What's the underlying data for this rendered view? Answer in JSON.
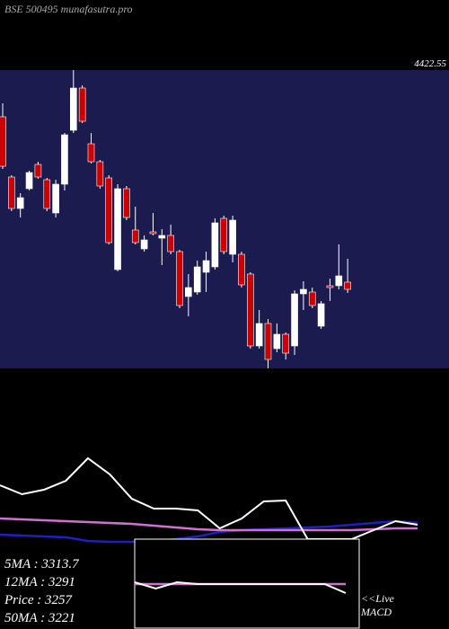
{
  "chart_data": [
    {
      "type": "candlestick",
      "title": "BSE 500495 munafasutra.pro",
      "annotations": [
        "4422.55"
      ],
      "up_color": "#ffffff",
      "down_color": "#cc0000",
      "background": "#1b1b50",
      "ylim": [
        2740,
        4400
      ],
      "open": [
        4140,
        3805,
        3630,
        3740,
        3875,
        3790,
        3605,
        3765,
        4065,
        4300,
        3990,
        3890,
        3800,
        3290,
        3740,
        3510,
        3405,
        3500,
        3465,
        3480,
        3390,
        3140,
        3165,
        3275,
        3305,
        3575,
        3375,
        3375,
        3265,
        2865,
        2990,
        2850,
        2930,
        2865,
        3155,
        3165,
        2975,
        3200,
        3200,
        3220
      ],
      "high": [
        4215,
        3815,
        3715,
        3840,
        3890,
        3800,
        3790,
        4050,
        4400,
        4315,
        4050,
        3900,
        3815,
        3765,
        3755,
        3640,
        3480,
        3605,
        3515,
        3540,
        3400,
        3265,
        3340,
        3390,
        3575,
        3590,
        3590,
        3390,
        3275,
        3065,
        3015,
        2990,
        2940,
        3175,
        3225,
        3190,
        3115,
        3240,
        3430,
        3350
      ],
      "low": [
        3850,
        3615,
        3580,
        3730,
        3795,
        3615,
        3580,
        3730,
        4050,
        4105,
        3880,
        3740,
        3430,
        3280,
        3565,
        3430,
        3390,
        3480,
        3315,
        3375,
        3075,
        3030,
        3150,
        3165,
        3290,
        3375,
        3330,
        3190,
        2850,
        2850,
        2740,
        2830,
        2790,
        2815,
        3065,
        3075,
        2960,
        3115,
        3180,
        3160
      ],
      "close": [
        3865,
        3630,
        3690,
        3830,
        3805,
        3630,
        3765,
        4040,
        4300,
        4115,
        3890,
        3755,
        3440,
        3740,
        3580,
        3440,
        3455,
        3490,
        3480,
        3390,
        3090,
        3190,
        3305,
        3340,
        3550,
        3390,
        3565,
        3205,
        2865,
        2990,
        2790,
        2930,
        2825,
        3155,
        3180,
        3090,
        3100,
        3190,
        3255,
        3180
      ]
    },
    {
      "type": "line",
      "ylim": [
        -5,
        100
      ],
      "annotations": [
        "5MA : 3313.7",
        "12MA : 3291",
        "Price : 3257",
        "50MA : 3221"
      ],
      "series": [
        {
          "color": "#ffffff",
          "values": [
            60,
            50,
            55,
            65,
            90,
            72,
            45,
            34,
            34,
            32,
            12,
            23,
            42,
            43,
            0,
            0,
            0,
            10,
            20,
            16
          ]
        },
        {
          "color": "#d070d0",
          "values": [
            23,
            22,
            21,
            20,
            19,
            18,
            17,
            15,
            13,
            11,
            10,
            10,
            10,
            10,
            10,
            10,
            10,
            11,
            12,
            12
          ]
        },
        {
          "color": "#2020c0",
          "values": [
            5,
            4,
            3,
            2,
            -2,
            -3,
            -3,
            -2,
            0,
            3,
            8,
            10,
            11,
            12,
            13,
            14,
            16,
            18,
            20,
            18
          ]
        }
      ]
    },
    {
      "type": "line",
      "ylim": [
        -20,
        20
      ],
      "annotations": [
        "<<Live",
        "MACD"
      ],
      "series": [
        {
          "color": "#ffffff",
          "values": [
            2,
            -5,
            2,
            0,
            0,
            0,
            0,
            0,
            0,
            0,
            -10
          ]
        },
        {
          "color": "#d070d0",
          "values": [
            0,
            0,
            0,
            0,
            0,
            0,
            0,
            0,
            0,
            0,
            0
          ]
        }
      ]
    }
  ]
}
